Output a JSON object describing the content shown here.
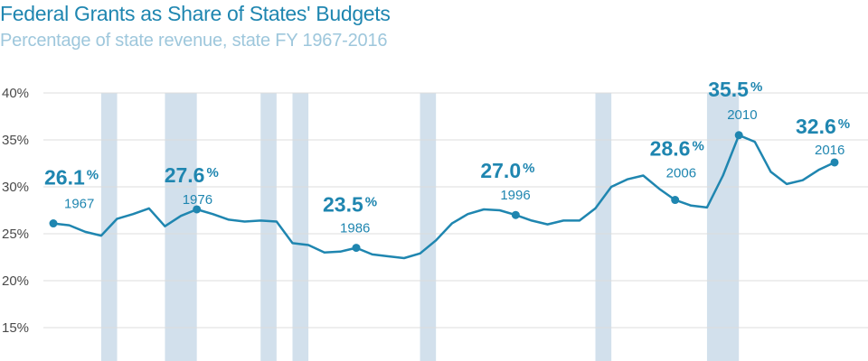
{
  "chart_data": {
    "type": "line",
    "title": "Federal Grants as Share of States' Budgets",
    "subtitle": "Percentage of state revenue, state FY 1967-2016",
    "y_ticks": [
      "40%",
      "35%",
      "30%",
      "25%",
      "20%",
      "15%"
    ],
    "ylim": [
      15,
      40
    ],
    "xlim": [
      1967,
      2016
    ],
    "grid": true,
    "x": [
      1967,
      1968,
      1969,
      1970,
      1971,
      1972,
      1973,
      1974,
      1975,
      1976,
      1977,
      1978,
      1979,
      1980,
      1981,
      1982,
      1983,
      1984,
      1985,
      1986,
      1987,
      1988,
      1989,
      1990,
      1991,
      1992,
      1993,
      1994,
      1995,
      1996,
      1997,
      1998,
      1999,
      2000,
      2001,
      2002,
      2003,
      2004,
      2005,
      2006,
      2007,
      2008,
      2009,
      2010,
      2011,
      2012,
      2013,
      2014,
      2015,
      2016
    ],
    "values": [
      26.1,
      25.9,
      25.2,
      24.8,
      26.6,
      27.1,
      27.7,
      25.8,
      26.9,
      27.6,
      27.1,
      26.5,
      26.3,
      26.4,
      26.3,
      24.0,
      23.8,
      23.0,
      23.1,
      23.5,
      22.8,
      22.6,
      22.4,
      22.9,
      24.3,
      26.1,
      27.1,
      27.6,
      27.5,
      27.0,
      26.4,
      26.0,
      26.4,
      26.4,
      27.7,
      30.0,
      30.8,
      31.2,
      29.8,
      28.6,
      28.0,
      27.8,
      31.2,
      35.5,
      34.8,
      31.6,
      30.3,
      30.7,
      31.8,
      32.6
    ],
    "recessions": [
      [
        1970,
        1971
      ],
      [
        1974,
        1976
      ],
      [
        1980,
        1981
      ],
      [
        1982,
        1983
      ],
      [
        1990,
        1991
      ],
      [
        2001,
        2002
      ],
      [
        2008,
        2010
      ]
    ],
    "annotations": [
      {
        "year": 1967,
        "value": "26.1",
        "pct": "%",
        "label": "1967"
      },
      {
        "year": 1976,
        "value": "27.6",
        "pct": "%",
        "label": "1976"
      },
      {
        "year": 1986,
        "value": "23.5",
        "pct": "%",
        "label": "1986"
      },
      {
        "year": 1996,
        "value": "27.0",
        "pct": "%",
        "label": "1996"
      },
      {
        "year": 2006,
        "value": "28.6",
        "pct": "%",
        "label": "2006"
      },
      {
        "year": 2010,
        "value": "35.5",
        "pct": "%",
        "label": "2010"
      },
      {
        "year": 2016,
        "value": "32.6",
        "pct": "%",
        "label": "2016"
      }
    ],
    "colors": {
      "line": "#1f86b0",
      "recession": "#d2e0ec",
      "grid": "#dcdcdc",
      "text": "#1f86b0"
    }
  }
}
